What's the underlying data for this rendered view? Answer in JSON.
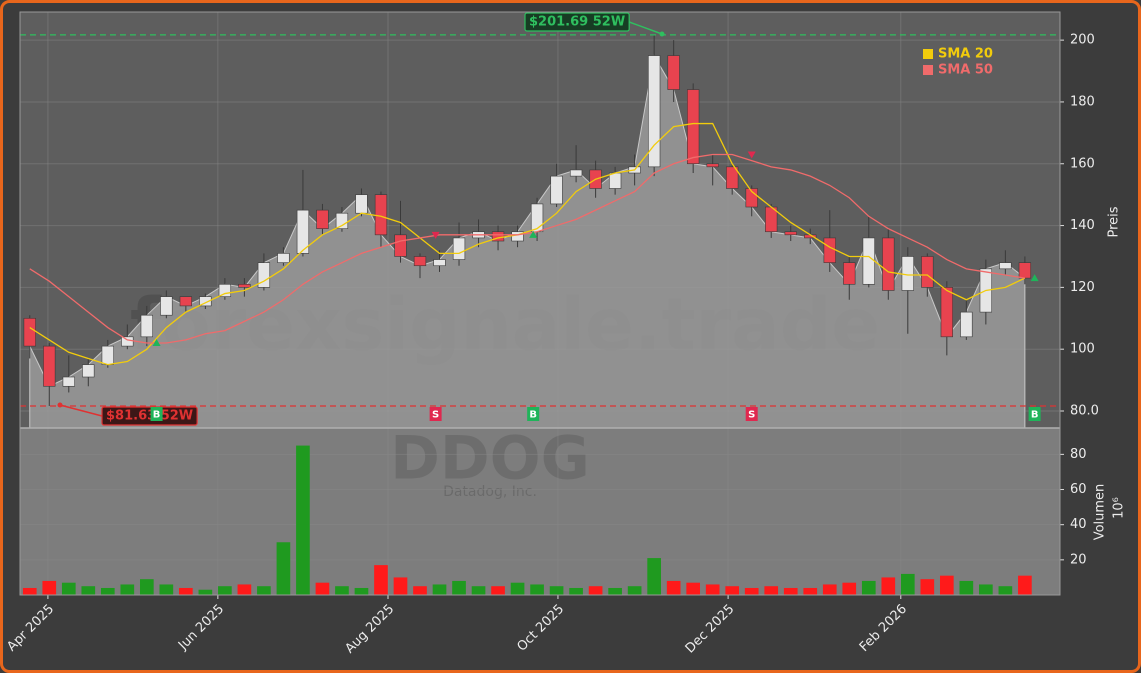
{
  "chart_data": [
    {
      "type": "candlestick",
      "watermark": "forexsignale.trade",
      "symbol": "DDOG",
      "company": "Datadog, Inc.",
      "y_label": "Preis",
      "x": [
        0.5,
        1.5,
        2.5,
        3.5,
        4.5,
        5.5,
        6.5,
        7.5,
        8.5,
        9.5,
        10.5,
        11.5,
        12.5,
        13.5,
        14.5,
        15.5,
        16.5,
        17.5,
        18.5,
        19.5,
        20.5,
        21.5,
        22.5,
        23.5,
        24.5,
        25.5,
        26.5,
        27.5,
        28.5,
        29.5,
        30.5,
        31.5,
        32.5,
        33.5,
        34.5,
        35.5,
        36.5,
        37.5,
        38.5,
        39.5,
        40.5,
        41.5,
        42.5,
        43.5,
        44.5,
        45.5,
        46.5,
        47.5,
        48.5,
        49.5,
        50.5,
        51.5
      ],
      "open": [
        110,
        101,
        88,
        91,
        95,
        101,
        104,
        111,
        117,
        114,
        117,
        121,
        120,
        128,
        131,
        145,
        139,
        144,
        150,
        137,
        130,
        127,
        129,
        136,
        138,
        135,
        138,
        147,
        156,
        158,
        152,
        157,
        159,
        195,
        184,
        160,
        159,
        152,
        146,
        138,
        137,
        136,
        128,
        121,
        136,
        119,
        130,
        120,
        104,
        112,
        126,
        128
      ],
      "high": [
        111,
        102,
        98,
        97,
        103,
        108,
        114,
        119,
        117,
        118,
        123,
        123,
        131,
        133,
        158,
        147,
        146,
        152,
        151,
        148,
        131,
        132,
        141,
        142,
        140,
        140,
        149,
        160,
        166,
        161,
        159,
        163,
        201.69,
        200,
        186,
        163,
        160,
        153,
        147,
        140,
        139,
        145,
        130,
        143,
        139,
        133,
        131,
        122,
        116,
        129,
        132,
        130
      ],
      "low": [
        97,
        81.63,
        86,
        88,
        94,
        100,
        101,
        110,
        112,
        113,
        116,
        117,
        119,
        127,
        130,
        137,
        138,
        143,
        133,
        128,
        123,
        125,
        127,
        133,
        132,
        133,
        135,
        146,
        154,
        149,
        150,
        153,
        156,
        180,
        157,
        153,
        150,
        143,
        136,
        135,
        134,
        125,
        116,
        120,
        116,
        105,
        117,
        98,
        103,
        108,
        124,
        121
      ],
      "close": [
        101,
        88,
        91,
        95,
        101,
        104,
        111,
        117,
        114,
        117,
        121,
        120,
        128,
        131,
        145,
        139,
        144,
        150,
        137,
        130,
        127,
        129,
        136,
        138,
        135,
        138,
        147,
        156,
        158,
        152,
        157,
        159,
        195,
        184,
        160,
        159,
        152,
        146,
        138,
        137,
        136,
        128,
        121,
        136,
        119,
        130,
        120,
        104,
        112,
        126,
        128,
        123
      ],
      "up_color": "#e6e6e6",
      "down_color": "#e8434f",
      "series": [
        {
          "name": "SMA 20",
          "color": "#f2cc0c",
          "values": [
            107,
            103,
            99,
            97,
            95,
            96,
            100,
            107,
            112,
            115,
            118,
            119,
            122,
            126,
            132,
            137,
            140,
            144,
            143,
            141,
            136,
            131,
            131,
            134,
            136,
            137,
            139,
            144,
            151,
            155,
            157,
            158,
            166,
            172,
            173,
            173,
            160,
            151,
            146,
            141,
            137,
            133,
            130,
            130,
            125,
            124,
            124,
            119,
            116,
            119,
            120,
            123
          ]
        },
        {
          "name": "SMA 50",
          "color": "#f06b6b",
          "values": [
            126,
            122,
            117,
            112,
            107,
            103,
            102,
            102,
            103,
            105,
            106,
            109,
            112,
            116,
            121,
            125,
            128,
            131,
            133,
            135,
            136,
            137,
            137,
            137,
            137,
            137,
            138,
            140,
            142,
            145,
            148,
            151,
            157,
            160,
            162,
            163,
            163,
            161,
            159,
            158,
            156,
            153,
            149,
            143,
            139,
            136,
            133,
            129,
            126,
            125,
            124,
            123
          ]
        }
      ],
      "signals": [
        {
          "x": 7.0,
          "price": 102,
          "label": "B"
        },
        {
          "x": 21.3,
          "price": 137,
          "label": "S"
        },
        {
          "x": 26.3,
          "price": 137,
          "label": "B"
        },
        {
          "x": 37.5,
          "price": 163,
          "label": "S"
        },
        {
          "x": 52.0,
          "price": 123,
          "label": "B"
        }
      ],
      "annotations": [
        {
          "value": 201.69,
          "label": "$201.69 52W",
          "color": "#2fbf5f"
        },
        {
          "value": 81.63,
          "label": "$81.63 52W",
          "color": "#e03232"
        }
      ],
      "xlim": [
        0,
        53.3
      ],
      "ylim": [
        74.5,
        209.1
      ],
      "yticks": [
        {
          "value": 80,
          "label": "80.0"
        },
        100,
        120,
        140,
        160,
        180,
        200
      ],
      "grid": true
    },
    {
      "type": "bar",
      "y_label": "Volumen",
      "y_multiplier": "10⁶",
      "x": [
        0.5,
        1.5,
        2.5,
        3.5,
        4.5,
        5.5,
        6.5,
        7.5,
        8.5,
        9.5,
        10.5,
        11.5,
        12.5,
        13.5,
        14.5,
        15.5,
        16.5,
        17.5,
        18.5,
        19.5,
        20.5,
        21.5,
        22.5,
        23.5,
        24.5,
        25.5,
        26.5,
        27.5,
        28.5,
        29.5,
        30.5,
        31.5,
        32.5,
        33.5,
        34.5,
        35.5,
        36.5,
        37.5,
        38.5,
        39.5,
        40.5,
        41.5,
        42.5,
        43.5,
        44.5,
        45.5,
        46.5,
        47.5,
        48.5,
        49.5,
        50.5,
        51.5
      ],
      "values": [
        4,
        8,
        7,
        5,
        4,
        6,
        9,
        6,
        4,
        3,
        5,
        6,
        5,
        30,
        85,
        7,
        5,
        4,
        17,
        10,
        5,
        6,
        8,
        5,
        5,
        7,
        6,
        5,
        4,
        5,
        4,
        5,
        21,
        8,
        7,
        6,
        5,
        4,
        5,
        4,
        4,
        6,
        7,
        8,
        10,
        12,
        9,
        11,
        8,
        6,
        5,
        11
      ],
      "up_color": "#1f9a1f",
      "down_color": "#ff1a1a",
      "xlim": [
        0,
        53.3
      ],
      "ylim": [
        0,
        95
      ],
      "yticks": [
        20,
        40,
        60,
        80
      ],
      "xticks": [
        {
          "value": 1.43,
          "label": "Apr 2025"
        },
        {
          "value": 10.14,
          "label": "Jun 2025"
        },
        {
          "value": 18.86,
          "label": "Aug 2025"
        },
        {
          "value": 27.57,
          "label": "Oct 2025"
        },
        {
          "value": 36.29,
          "label": "Dec 2025"
        },
        {
          "value": 45.14,
          "label": "Feb 2026"
        }
      ],
      "grid": true
    }
  ]
}
